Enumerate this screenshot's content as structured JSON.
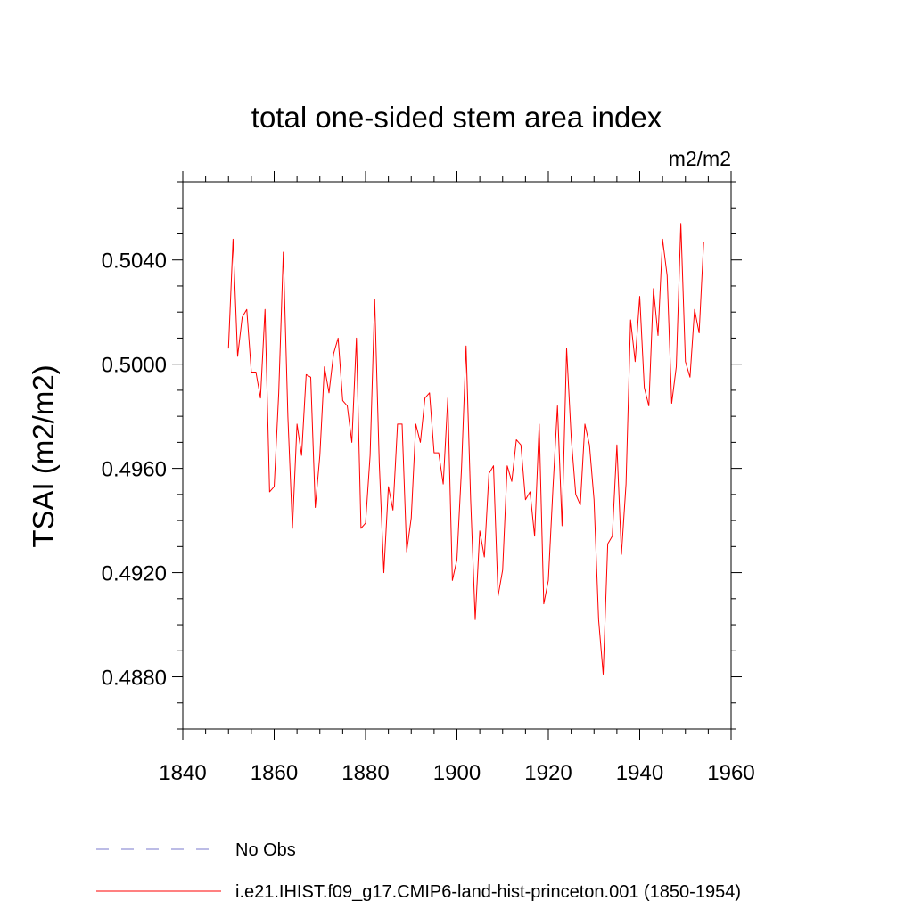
{
  "chart_data": {
    "type": "line",
    "title": "total one-sided stem area index",
    "units": "m2/m2",
    "xlabel": "",
    "ylabel": "TSAI  (m2/m2)",
    "xlim": [
      1840,
      1960
    ],
    "ylim": [
      0.486,
      0.507
    ],
    "x_ticks": [
      1840,
      1860,
      1880,
      1900,
      1920,
      1940,
      1960
    ],
    "x_tick_labels": [
      "1840",
      "1860",
      "1880",
      "1900",
      "1920",
      "1940",
      "1960"
    ],
    "y_ticks": [
      0.488,
      0.492,
      0.496,
      0.5,
      0.504
    ],
    "y_tick_labels": [
      "0.4880",
      "0.4920",
      "0.4960",
      "0.5000",
      "0.5040"
    ],
    "grid": false,
    "legend_position": "bottom",
    "series": [
      {
        "name": "No Obs",
        "color": "#7a7acc",
        "dash": "dashed",
        "x": [],
        "y": []
      },
      {
        "name": "i.e21.IHIST.f09_g17.CMIP6-land-hist-princeton.001 (1850-1954)",
        "color": "#ff0000",
        "dash": "solid",
        "x": [
          1850,
          1851,
          1852,
          1853,
          1854,
          1855,
          1856,
          1857,
          1858,
          1859,
          1860,
          1861,
          1862,
          1863,
          1864,
          1865,
          1866,
          1867,
          1868,
          1869,
          1870,
          1871,
          1872,
          1873,
          1874,
          1875,
          1876,
          1877,
          1878,
          1879,
          1880,
          1881,
          1882,
          1883,
          1884,
          1885,
          1886,
          1887,
          1888,
          1889,
          1890,
          1891,
          1892,
          1893,
          1894,
          1895,
          1896,
          1897,
          1898,
          1899,
          1900,
          1901,
          1902,
          1903,
          1904,
          1905,
          1906,
          1907,
          1908,
          1909,
          1910,
          1911,
          1912,
          1913,
          1914,
          1915,
          1916,
          1917,
          1918,
          1919,
          1920,
          1921,
          1922,
          1923,
          1924,
          1925,
          1926,
          1927,
          1928,
          1929,
          1930,
          1931,
          1932,
          1933,
          1934,
          1935,
          1936,
          1937,
          1938,
          1939,
          1940,
          1941,
          1942,
          1943,
          1944,
          1945,
          1946,
          1947,
          1948,
          1949,
          1950,
          1951,
          1952,
          1953,
          1954
        ],
        "y": [
          0.5006,
          0.5048,
          0.5003,
          0.5018,
          0.5021,
          0.4997,
          0.4997,
          0.4987,
          0.5021,
          0.4951,
          0.4953,
          0.4989,
          0.5043,
          0.498,
          0.4937,
          0.4977,
          0.4965,
          0.4996,
          0.4995,
          0.4945,
          0.4965,
          0.4999,
          0.4989,
          0.5004,
          0.501,
          0.4986,
          0.4984,
          0.497,
          0.501,
          0.4937,
          0.4939,
          0.4965,
          0.5025,
          0.4962,
          0.492,
          0.4953,
          0.4944,
          0.4977,
          0.4977,
          0.4928,
          0.4941,
          0.4977,
          0.497,
          0.4987,
          0.4989,
          0.4966,
          0.4966,
          0.4954,
          0.4987,
          0.4917,
          0.4925,
          0.496,
          0.5007,
          0.4948,
          0.4902,
          0.4936,
          0.4926,
          0.4958,
          0.4961,
          0.4911,
          0.4921,
          0.4961,
          0.4955,
          0.4971,
          0.4969,
          0.4948,
          0.4951,
          0.4934,
          0.4977,
          0.4908,
          0.4917,
          0.4952,
          0.4984,
          0.4938,
          0.5006,
          0.4972,
          0.495,
          0.4946,
          0.4977,
          0.4969,
          0.4948,
          0.4902,
          0.4881,
          0.4931,
          0.4934,
          0.4969,
          0.4927,
          0.4954,
          0.5017,
          0.5001,
          0.5026,
          0.4991,
          0.4984,
          0.5029,
          0.5011,
          0.5048,
          0.5034,
          0.4985,
          0.4999,
          0.5054,
          0.5001,
          0.4995,
          0.5021,
          0.5012,
          0.5047
        ]
      }
    ]
  }
}
